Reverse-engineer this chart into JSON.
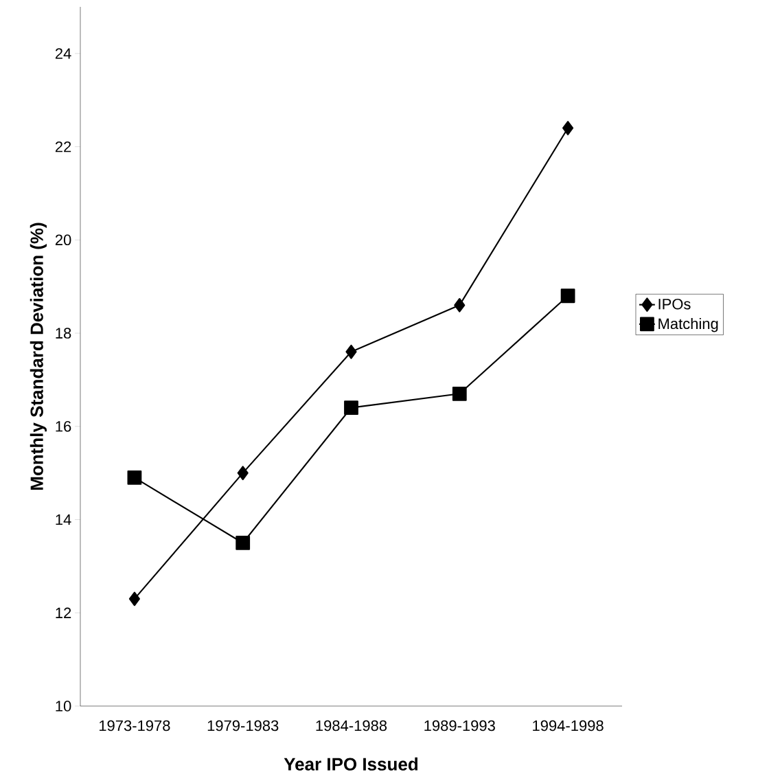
{
  "chart_data": {
    "type": "line",
    "xlabel": "Year IPO Issued",
    "ylabel": "Monthly Standard Deviation (%)",
    "categories": [
      "1973-1978",
      "1979-1983",
      "1984-1988",
      "1989-1993",
      "1994-1998"
    ],
    "series": [
      {
        "name": "IPOs",
        "color": "#000000",
        "marker": "diamond",
        "values": [
          12.3,
          15.0,
          17.6,
          18.6,
          22.4
        ]
      },
      {
        "name": "Matching",
        "color": "#000000",
        "marker": "square",
        "values": [
          14.9,
          13.5,
          16.4,
          16.7,
          18.8
        ]
      }
    ],
    "ylim": [
      10,
      25
    ],
    "yticks": [
      10,
      12,
      14,
      16,
      18,
      20,
      22,
      24
    ],
    "grid": false,
    "legend": "right",
    "line_style": "solid"
  }
}
